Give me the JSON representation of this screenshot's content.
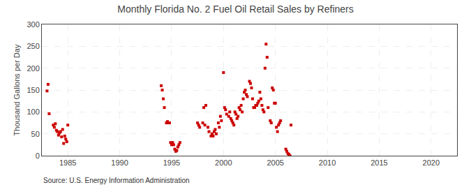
{
  "chart_data": {
    "type": "scatter",
    "title": "Monthly Florida No. 2 Fuel Oil Retail Sales by Refiners",
    "ylabel": "Thousand Gallons per Day",
    "source": "Source: U.S. Energy Information Administration",
    "color": "#cc0000",
    "marker": "square",
    "grid": true,
    "xlim": [
      1982.5,
      2022.5
    ],
    "ylim": [
      0,
      300
    ],
    "xticks": [
      1985,
      1990,
      1995,
      2000,
      2005,
      2010,
      2015,
      2020
    ],
    "yticks": [
      0,
      50,
      100,
      150,
      200,
      250,
      300
    ],
    "x": [
      1983.0,
      1983.1,
      1983.2,
      1983.6,
      1983.7,
      1983.8,
      1983.9,
      1984.0,
      1984.1,
      1984.2,
      1984.3,
      1984.4,
      1984.5,
      1984.6,
      1984.7,
      1984.8,
      1984.9,
      1985.0,
      1994.0,
      1994.1,
      1994.2,
      1994.3,
      1994.5,
      1994.6,
      1994.7,
      1994.8,
      1994.9,
      1995.0,
      1995.1,
      1995.2,
      1995.3,
      1995.4,
      1995.5,
      1995.6,
      1995.7,
      1995.8,
      1997.5,
      1997.6,
      1997.7,
      1998.0,
      1998.1,
      1998.2,
      1998.3,
      1998.5,
      1998.6,
      1998.8,
      1998.9,
      1999.0,
      1999.1,
      1999.2,
      1999.3,
      1999.5,
      1999.6,
      1999.7,
      1999.8,
      2000.0,
      2000.1,
      2000.2,
      2000.3,
      2000.5,
      2000.6,
      2000.7,
      2000.8,
      2000.9,
      2001.0,
      2001.1,
      2001.2,
      2001.3,
      2001.4,
      2001.5,
      2001.6,
      2001.7,
      2001.8,
      2001.9,
      2002.0,
      2002.1,
      2002.2,
      2002.3,
      2002.5,
      2002.6,
      2002.7,
      2002.8,
      2002.9,
      2003.0,
      2003.1,
      2003.2,
      2003.3,
      2003.4,
      2003.5,
      2003.6,
      2003.7,
      2003.8,
      2003.9,
      2004.0,
      2004.1,
      2004.2,
      2004.3,
      2004.5,
      2004.6,
      2004.7,
      2004.8,
      2004.9,
      2005.0,
      2005.1,
      2005.2,
      2005.3,
      2005.4,
      2005.5,
      2006.0,
      2006.1,
      2006.2,
      2006.3,
      2006.4,
      2006.5
    ],
    "values": [
      148,
      163,
      96,
      70,
      65,
      73,
      58,
      55,
      47,
      52,
      55,
      43,
      60,
      28,
      45,
      38,
      32,
      70,
      160,
      150,
      130,
      110,
      75,
      78,
      75,
      75,
      30,
      25,
      30,
      25,
      15,
      10,
      12,
      20,
      25,
      30,
      75,
      70,
      65,
      75,
      110,
      70,
      115,
      65,
      55,
      45,
      50,
      45,
      55,
      60,
      50,
      75,
      65,
      90,
      80,
      190,
      110,
      105,
      95,
      90,
      100,
      85,
      80,
      75,
      70,
      100,
      95,
      85,
      90,
      110,
      105,
      115,
      100,
      130,
      145,
      150,
      140,
      135,
      170,
      165,
      155,
      130,
      110,
      110,
      115,
      115,
      120,
      125,
      145,
      130,
      115,
      105,
      100,
      200,
      255,
      225,
      110,
      80,
      75,
      155,
      150,
      120,
      120,
      65,
      55,
      70,
      75,
      80,
      15,
      10,
      5,
      3,
      0,
      70
    ]
  }
}
